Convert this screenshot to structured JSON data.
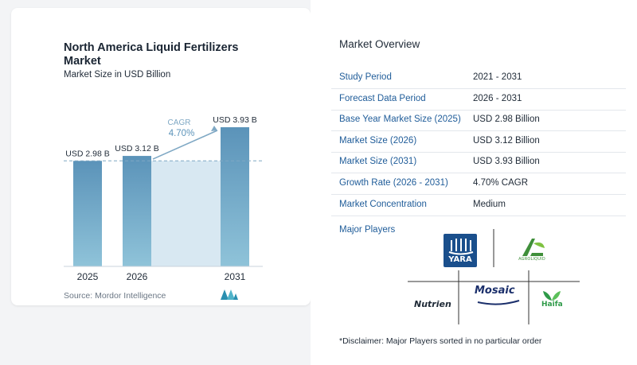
{
  "chart_data": {
    "type": "bar",
    "title": "North America Liquid Fertilizers Market",
    "subtitle": "Market Size in USD Billion",
    "categories": [
      "2025",
      "2026",
      "2031"
    ],
    "values": [
      2.98,
      3.12,
      3.93
    ],
    "data_labels": [
      "USD 2.98 B",
      "USD 3.12 B",
      "USD 3.93 B"
    ],
    "cagr": {
      "label": "CAGR",
      "value": "4.70%"
    },
    "ylim": [
      0,
      4.3
    ],
    "bar_color": "#5b93b9",
    "bar_color_light": "#8fc3d9",
    "shade_color": "#d8e8f2",
    "legend": "none",
    "grid": false
  },
  "source": "Source: Mordor Intelligence",
  "overview": {
    "title": "Market Overview",
    "rows": [
      {
        "key": "Study Period",
        "value": "2021 - 2031"
      },
      {
        "key": "Forecast Data Period",
        "value": "2026 - 2031"
      },
      {
        "key": "Base Year Market Size (2025)",
        "value": "USD 2.98 Billion"
      },
      {
        "key": "Market Size (2026)",
        "value": "USD 3.12 Billion"
      },
      {
        "key": "Market Size (2031)",
        "value": "USD 3.93 Billion"
      },
      {
        "key": "Growth Rate (2026 - 2031)",
        "value": "4.70% CAGR"
      },
      {
        "key": "Market Concentration",
        "value": "Medium"
      }
    ],
    "players_label": "Major Players",
    "players": [
      "YARA",
      "AGROLIQUID",
      "Nutrien",
      "Mosaic",
      "Haifa"
    ],
    "disclaimer": "*Disclaimer: Major Players sorted in no particular order"
  },
  "colors": {
    "key_text": "#1f5c99",
    "yara_blue": "#1a4f8c",
    "agro_green": "#3f8f3a",
    "nutrien_green": "#5a9a2e",
    "mosaic_navy": "#1b2f6b",
    "haifa_green": "#2e9a48",
    "logo_teal": "#2a8fb0"
  }
}
